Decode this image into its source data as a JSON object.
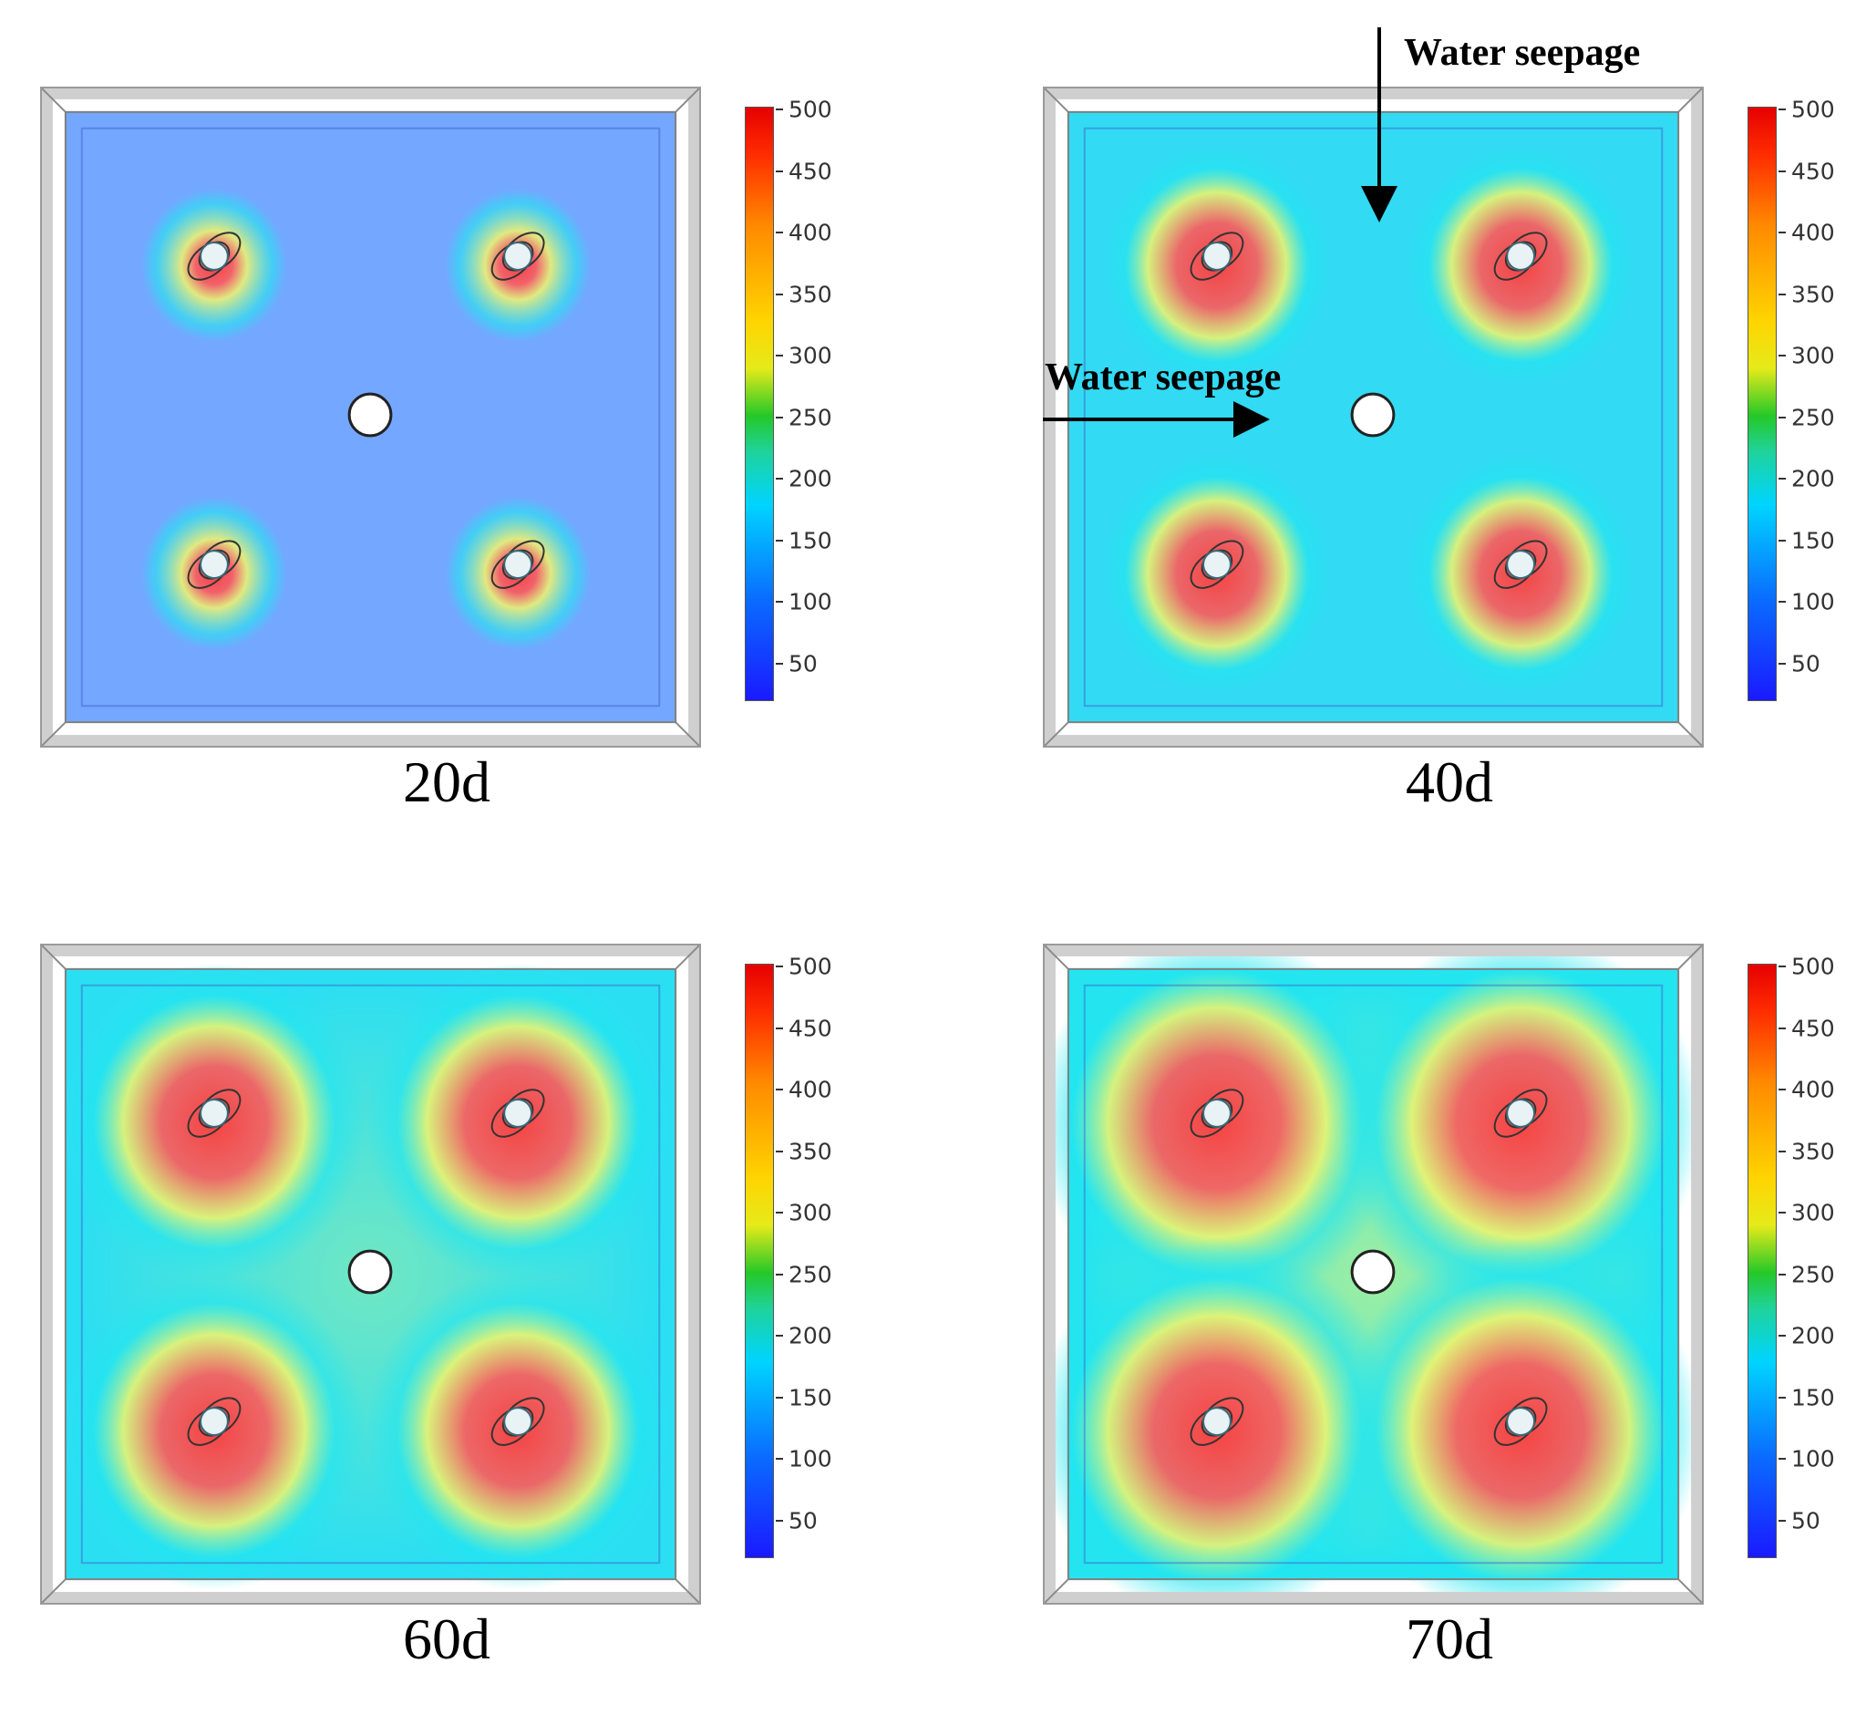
{
  "panels": [
    {
      "id": "20d",
      "label": "20d",
      "level": 0.0
    },
    {
      "id": "40d",
      "label": "40d",
      "level": 0.35
    },
    {
      "id": "60d",
      "label": "60d",
      "level": 0.65
    },
    {
      "id": "70d",
      "label": "70d",
      "level": 0.9
    }
  ],
  "colorbar": {
    "ticks": [
      "500",
      "450",
      "400",
      "350",
      "300",
      "250",
      "200",
      "150",
      "100",
      "50"
    ],
    "max": 500,
    "min": 50
  },
  "annotations": {
    "top": "Water seepage",
    "left": "Water seepage"
  },
  "colors": {
    "background_low": "#74a7ff",
    "cyan": "#22e6f0",
    "yellow": "#f3f56a",
    "hot": "#ff5a5a",
    "frame": "#9a9a9a"
  }
}
